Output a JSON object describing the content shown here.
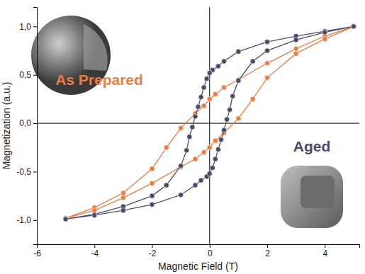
{
  "chart_data": {
    "type": "line",
    "x_label": "Magnetic Field (T)",
    "y_label": "Magnetization (a.u.)",
    "xlim": [
      -6,
      5.2
    ],
    "ylim": [
      -1.25,
      1.2
    ],
    "xticks": [
      -6,
      -4,
      -2,
      0,
      2,
      4
    ],
    "yticks": [
      {
        "value": -1,
        "label": "-1,0"
      },
      {
        "value": -0.5,
        "label": "-0,5"
      },
      {
        "value": 0,
        "label": "0,0"
      },
      {
        "value": 0.5,
        "label": "0,5"
      },
      {
        "value": 1,
        "label": "1,0"
      }
    ],
    "grid": false,
    "series": [
      {
        "name": "As Prepared",
        "color": "#f07b3f",
        "marker": "circle",
        "line_style": "solid",
        "x": [
          5,
          4,
          3,
          2,
          1,
          0.5,
          0.2,
          0,
          -0.2,
          -0.5,
          -1,
          -1.5,
          -2,
          -3,
          -4,
          -5,
          -4,
          -3,
          -2,
          -1,
          -0.5,
          -0.2,
          0,
          0.2,
          0.5,
          1,
          1.5,
          2,
          3,
          4,
          5
        ],
        "values": [
          1.0,
          0.9,
          0.77,
          0.62,
          0.45,
          0.37,
          0.3,
          0.25,
          0.18,
          0.1,
          -0.05,
          -0.25,
          -0.47,
          -0.72,
          -0.87,
          -0.98,
          -0.9,
          -0.77,
          -0.62,
          -0.45,
          -0.37,
          -0.3,
          -0.25,
          -0.18,
          -0.1,
          0.05,
          0.25,
          0.47,
          0.72,
          0.87,
          1.0
        ]
      },
      {
        "name": "Aged",
        "color": "#4b4b68",
        "marker": "circle",
        "line_style": "solid",
        "x": [
          5,
          4,
          3,
          2,
          1,
          0.5,
          0.3,
          0.1,
          0,
          -0.1,
          -0.2,
          -0.3,
          -0.4,
          -0.5,
          -0.6,
          -0.7,
          -0.8,
          -1,
          -1.5,
          -2,
          -3,
          -4,
          -5,
          -4,
          -3,
          -2,
          -1,
          -0.5,
          -0.3,
          -0.1,
          0,
          0.1,
          0.2,
          0.3,
          0.4,
          0.5,
          0.6,
          0.7,
          0.8,
          1,
          1.5,
          2,
          3,
          4,
          5
        ],
        "values": [
          1.0,
          0.95,
          0.9,
          0.84,
          0.74,
          0.64,
          0.59,
          0.55,
          0.52,
          0.46,
          0.37,
          0.27,
          0.17,
          0.07,
          -0.04,
          -0.14,
          -0.28,
          -0.44,
          -0.64,
          -0.75,
          -0.86,
          -0.94,
          -0.99,
          -0.95,
          -0.9,
          -0.84,
          -0.74,
          -0.64,
          -0.59,
          -0.55,
          -0.52,
          -0.46,
          -0.37,
          -0.27,
          -0.17,
          -0.07,
          0.04,
          0.14,
          0.28,
          0.44,
          0.64,
          0.75,
          0.86,
          0.94,
          1.0
        ]
      }
    ]
  }
}
